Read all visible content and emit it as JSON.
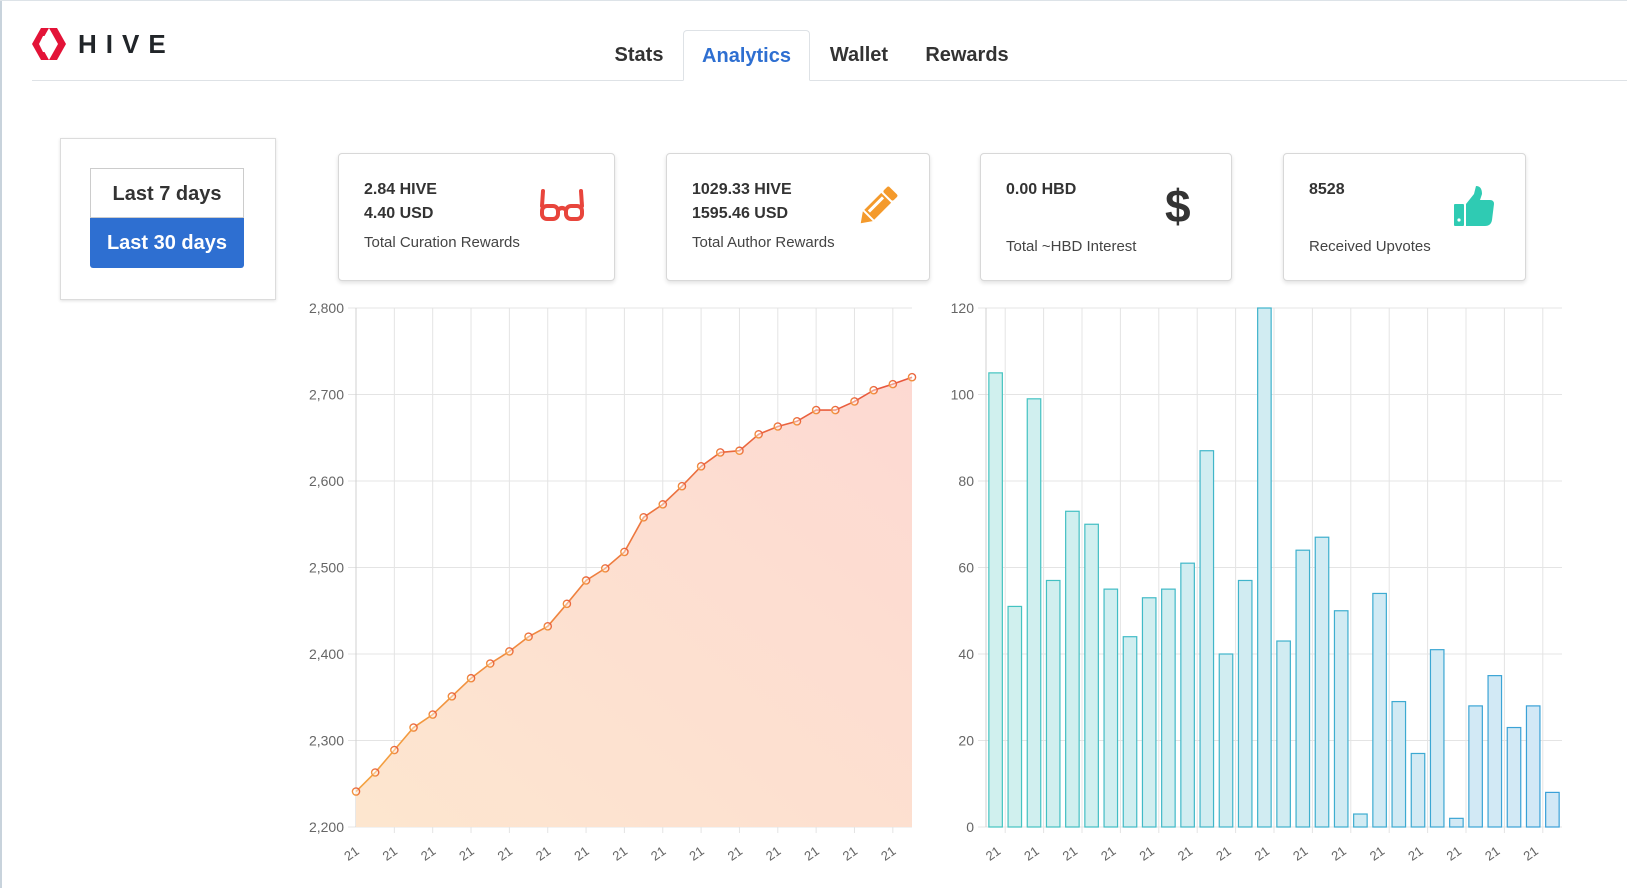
{
  "brand": {
    "name": "HIVE",
    "color": "#e31337"
  },
  "tabs": [
    {
      "label": "Stats",
      "active": false
    },
    {
      "label": "Analytics",
      "active": true
    },
    {
      "label": "Wallet",
      "active": false
    },
    {
      "label": "Rewards",
      "active": false
    }
  ],
  "range": {
    "last7": "Last 7 days",
    "last30": "Last 30 days",
    "selected": "Last 30 days"
  },
  "cards": {
    "curation": {
      "line1": "2.84 HIVE",
      "line2": "4.40 USD",
      "desc": "Total Curation Rewards",
      "icon": "glasses-icon",
      "color": "#e8453c"
    },
    "author": {
      "line1": "1029.33 HIVE",
      "line2": "1595.46 USD",
      "desc": "Total Author Rewards",
      "icon": "pencil-icon",
      "color": "#f49a2c"
    },
    "interest": {
      "line1": "0.00 HBD",
      "desc": "Total ~HBD Interest",
      "icon": "dollar-icon",
      "color": "#333333"
    },
    "upvotes": {
      "line1": "8528",
      "desc": "Received Upvotes",
      "icon": "thumbs-up-icon",
      "color": "#2fcbb3"
    }
  },
  "chart_data": [
    {
      "type": "area",
      "yticks": [
        "2,200",
        "2,300",
        "2,400",
        "2,500",
        "2,600",
        "2,700",
        "2,800"
      ],
      "ylim": [
        2200,
        2800
      ],
      "x_tick_label": "21",
      "values": [
        2241,
        2263,
        2289,
        2315,
        2330,
        2351,
        2372,
        2389,
        2403,
        2420,
        2432,
        2458,
        2485,
        2499,
        2518,
        2558,
        2573,
        2594,
        2617,
        2633,
        2635,
        2654,
        2663,
        2669,
        2682,
        2682,
        2692,
        2705,
        2712,
        2720
      ],
      "colors": {
        "line_start": "#f4a340",
        "line_end": "#e8563e",
        "fill_start": "#fde6cf",
        "fill_end": "#fdd9d2"
      }
    },
    {
      "type": "bar",
      "yticks": [
        "0",
        "20",
        "40",
        "60",
        "80",
        "100",
        "120"
      ],
      "ylim": [
        0,
        120
      ],
      "x_tick_label": "21",
      "values": [
        105,
        51,
        99,
        57,
        73,
        70,
        55,
        44,
        53,
        55,
        61,
        87,
        40,
        57,
        120,
        43,
        64,
        67,
        50,
        3,
        54,
        29,
        17,
        41,
        2,
        28,
        35,
        23,
        28,
        8
      ],
      "colors": {
        "fill_a": "#d0f0ee",
        "fill_b": "#d2e8f6",
        "stroke_a": "#44c4c0",
        "stroke_b": "#3aa0d8"
      }
    }
  ]
}
